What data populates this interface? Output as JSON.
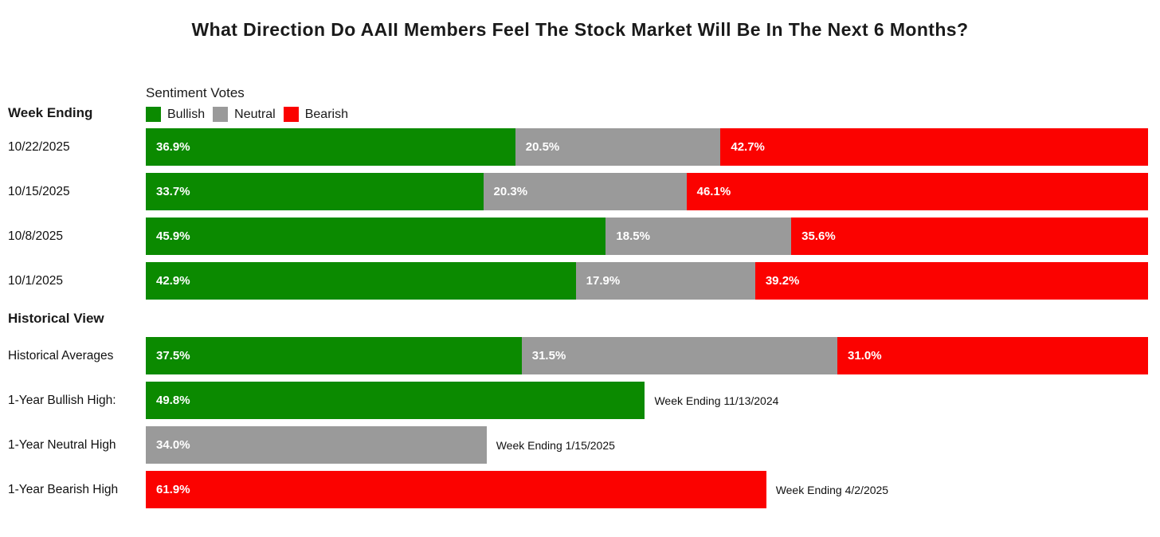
{
  "title": "What Direction Do AAII Members Feel The Stock Market Will Be In The Next 6 Months?",
  "left_header": "Week Ending",
  "historical_header": "Historical View",
  "legend": {
    "title": "Sentiment Votes",
    "items": [
      {
        "label": "Bullish",
        "color": "#0B8A00"
      },
      {
        "label": "Neutral",
        "color": "#9A9A9A"
      },
      {
        "label": "Bearish",
        "color": "#FB0200"
      }
    ]
  },
  "colors": {
    "bullish": "#0B8A00",
    "neutral": "#9A9A9A",
    "bearish": "#FB0200"
  },
  "weekly_rows": [
    {
      "label": "10/22/2025",
      "segments": [
        {
          "key": "bullish",
          "value": 36.9
        },
        {
          "key": "neutral",
          "value": 20.5
        },
        {
          "key": "bearish",
          "value": 42.7
        }
      ]
    },
    {
      "label": "10/15/2025",
      "segments": [
        {
          "key": "bullish",
          "value": 33.7
        },
        {
          "key": "neutral",
          "value": 20.3
        },
        {
          "key": "bearish",
          "value": 46.1
        }
      ]
    },
    {
      "label": "10/8/2025",
      "segments": [
        {
          "key": "bullish",
          "value": 45.9
        },
        {
          "key": "neutral",
          "value": 18.5
        },
        {
          "key": "bearish",
          "value": 35.6
        }
      ]
    },
    {
      "label": "10/1/2025",
      "segments": [
        {
          "key": "bullish",
          "value": 42.9
        },
        {
          "key": "neutral",
          "value": 17.9
        },
        {
          "key": "bearish",
          "value": 39.2
        }
      ]
    }
  ],
  "historical_rows": [
    {
      "label": "Historical Averages",
      "segments": [
        {
          "key": "bullish",
          "value": 37.5
        },
        {
          "key": "neutral",
          "value": 31.5
        },
        {
          "key": "bearish",
          "value": 31.0
        }
      ]
    },
    {
      "label": "1-Year Bullish High:",
      "segments": [
        {
          "key": "bullish",
          "value": 49.8
        }
      ],
      "annotation": "Week Ending 11/13/2024"
    },
    {
      "label": "1-Year Neutral High",
      "segments": [
        {
          "key": "neutral",
          "value": 34.0
        }
      ],
      "annotation": "Week Ending 1/15/2025"
    },
    {
      "label": "1-Year Bearish High",
      "segments": [
        {
          "key": "bearish",
          "value": 61.9
        }
      ],
      "annotation": "Week Ending 4/2/2025"
    }
  ],
  "chart_data": {
    "type": "bar",
    "orientation": "horizontal-stacked",
    "title": "What Direction Do AAII Members Feel The Stock Market Will Be In The Next 6 Months?",
    "categories": [
      "10/22/2025",
      "10/15/2025",
      "10/8/2025",
      "10/1/2025",
      "Historical Averages"
    ],
    "series": [
      {
        "name": "Bullish",
        "color": "#0B8A00",
        "values": [
          36.9,
          33.7,
          45.9,
          42.9,
          37.5
        ]
      },
      {
        "name": "Neutral",
        "color": "#9A9A9A",
        "values": [
          20.5,
          20.3,
          18.5,
          17.9,
          31.5
        ]
      },
      {
        "name": "Bearish",
        "color": "#FB0200",
        "values": [
          42.7,
          46.1,
          35.6,
          39.2,
          31.0
        ]
      }
    ],
    "extremes": [
      {
        "label": "1-Year Bullish High:",
        "series": "Bullish",
        "value": 49.8,
        "annotation": "Week Ending 11/13/2024"
      },
      {
        "label": "1-Year Neutral High",
        "series": "Neutral",
        "value": 34.0,
        "annotation": "Week Ending 1/15/2025"
      },
      {
        "label": "1-Year Bearish High",
        "series": "Bearish",
        "value": 61.9,
        "annotation": "Week Ending 4/2/2025"
      }
    ],
    "xlim": [
      0,
      100
    ],
    "unit": "%",
    "legend_position": "top-left",
    "grid": false
  }
}
